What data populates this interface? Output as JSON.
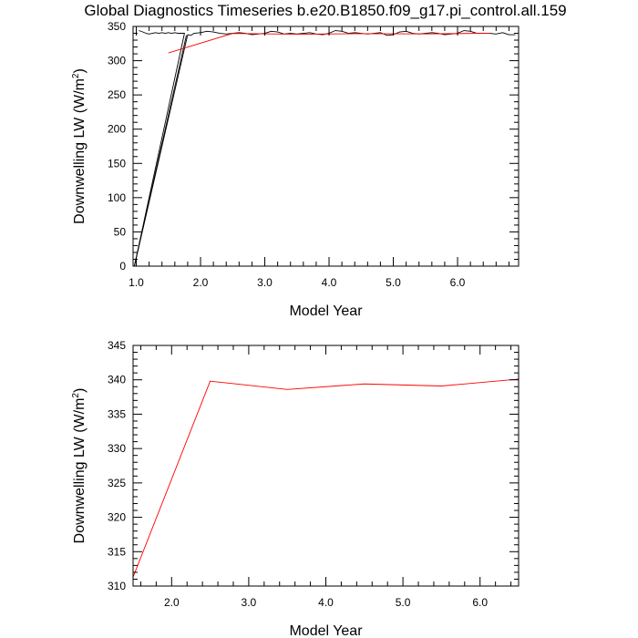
{
  "title": "Global Diagnostics Timeseries b.e20.B1850.f09_g17.pi_control.all.159",
  "chart_data": [
    {
      "type": "line",
      "xlabel": "Model Year",
      "ylabel_main": "Downwelling LW (W/m",
      "ylabel_sup": "2",
      "ylabel_end": ")",
      "xlim": [
        0.95,
        6.95
      ],
      "ylim": [
        0,
        350
      ],
      "xticks": [
        1.0,
        2.0,
        3.0,
        4.0,
        5.0,
        6.0
      ],
      "xtick_labels": [
        "1.0",
        "2.0",
        "3.0",
        "4.0",
        "5.0",
        "6.0"
      ],
      "yticks": [
        0,
        50,
        100,
        150,
        200,
        250,
        300,
        350
      ],
      "ytick_labels": [
        "0",
        "50",
        "100",
        "150",
        "200",
        "250",
        "300",
        "350"
      ],
      "series": [
        {
          "color": "#000000",
          "x": [
            1.04,
            1.1,
            1.15,
            1.2,
            1.25,
            1.3,
            1.35,
            1.4,
            1.45,
            1.5,
            1.55,
            1.6,
            1.65,
            1.7,
            1.75,
            0.97,
            1.8,
            1.85,
            1.9,
            2.0,
            2.1,
            2.2,
            2.3,
            2.4,
            2.5,
            2.6,
            2.7,
            2.8,
            2.9,
            3.0,
            3.1,
            3.2,
            3.3,
            3.4,
            3.5,
            3.6,
            3.7,
            3.8,
            3.9,
            4.0,
            4.1,
            4.2,
            4.3,
            4.4,
            4.5,
            4.6,
            4.7,
            4.8,
            4.9,
            5.0,
            5.1,
            5.2,
            5.3,
            5.4,
            5.5,
            5.6,
            5.7,
            5.8,
            5.9,
            6.0,
            6.1,
            6.2,
            6.3,
            6.4,
            6.5,
            6.6,
            6.7,
            6.8,
            6.9
          ],
          "y": [
            344,
            342,
            340,
            339,
            340,
            341,
            340,
            341,
            340,
            341,
            340,
            341,
            340,
            340,
            340,
            0,
            338,
            337,
            340,
            341,
            343,
            342,
            340,
            339,
            340,
            341,
            340,
            338,
            339,
            340,
            343,
            342,
            339,
            340,
            339,
            340,
            341,
            339,
            338,
            340,
            344,
            343,
            340,
            341,
            340,
            339,
            340,
            341,
            337,
            338,
            342,
            343,
            340,
            339,
            340,
            341,
            340,
            338,
            339,
            340,
            344,
            343,
            340,
            340,
            340,
            339,
            341,
            338,
            338
          ]
        },
        {
          "color": "#000000",
          "x": [
            0.97,
            1.78
          ],
          "y": [
            0,
            337
          ]
        },
        {
          "color": "#ff0000",
          "x": [
            1.5,
            2.5,
            3.5,
            4.5,
            5.5,
            6.5
          ],
          "y": [
            311.3,
            339.8,
            338.6,
            339.4,
            339.1,
            340.1
          ]
        }
      ]
    },
    {
      "type": "line",
      "xlabel": "Model Year",
      "ylabel_main": "Downwelling LW (W/m",
      "ylabel_sup": "2",
      "ylabel_end": ")",
      "xlim": [
        1.5,
        6.5
      ],
      "ylim": [
        310,
        345
      ],
      "xticks": [
        2.0,
        3.0,
        4.0,
        5.0,
        6.0
      ],
      "xtick_labels": [
        "2.0",
        "3.0",
        "4.0",
        "5.0",
        "6.0"
      ],
      "yticks": [
        310,
        315,
        320,
        325,
        330,
        335,
        340,
        345
      ],
      "ytick_labels": [
        "310",
        "315",
        "320",
        "325",
        "330",
        "335",
        "340",
        "345"
      ],
      "series": [
        {
          "color": "#ff0000",
          "x": [
            1.5,
            2.5,
            3.5,
            4.5,
            5.5,
            6.5
          ],
          "y": [
            311.3,
            339.8,
            338.6,
            339.4,
            339.1,
            340.1
          ]
        }
      ]
    }
  ]
}
